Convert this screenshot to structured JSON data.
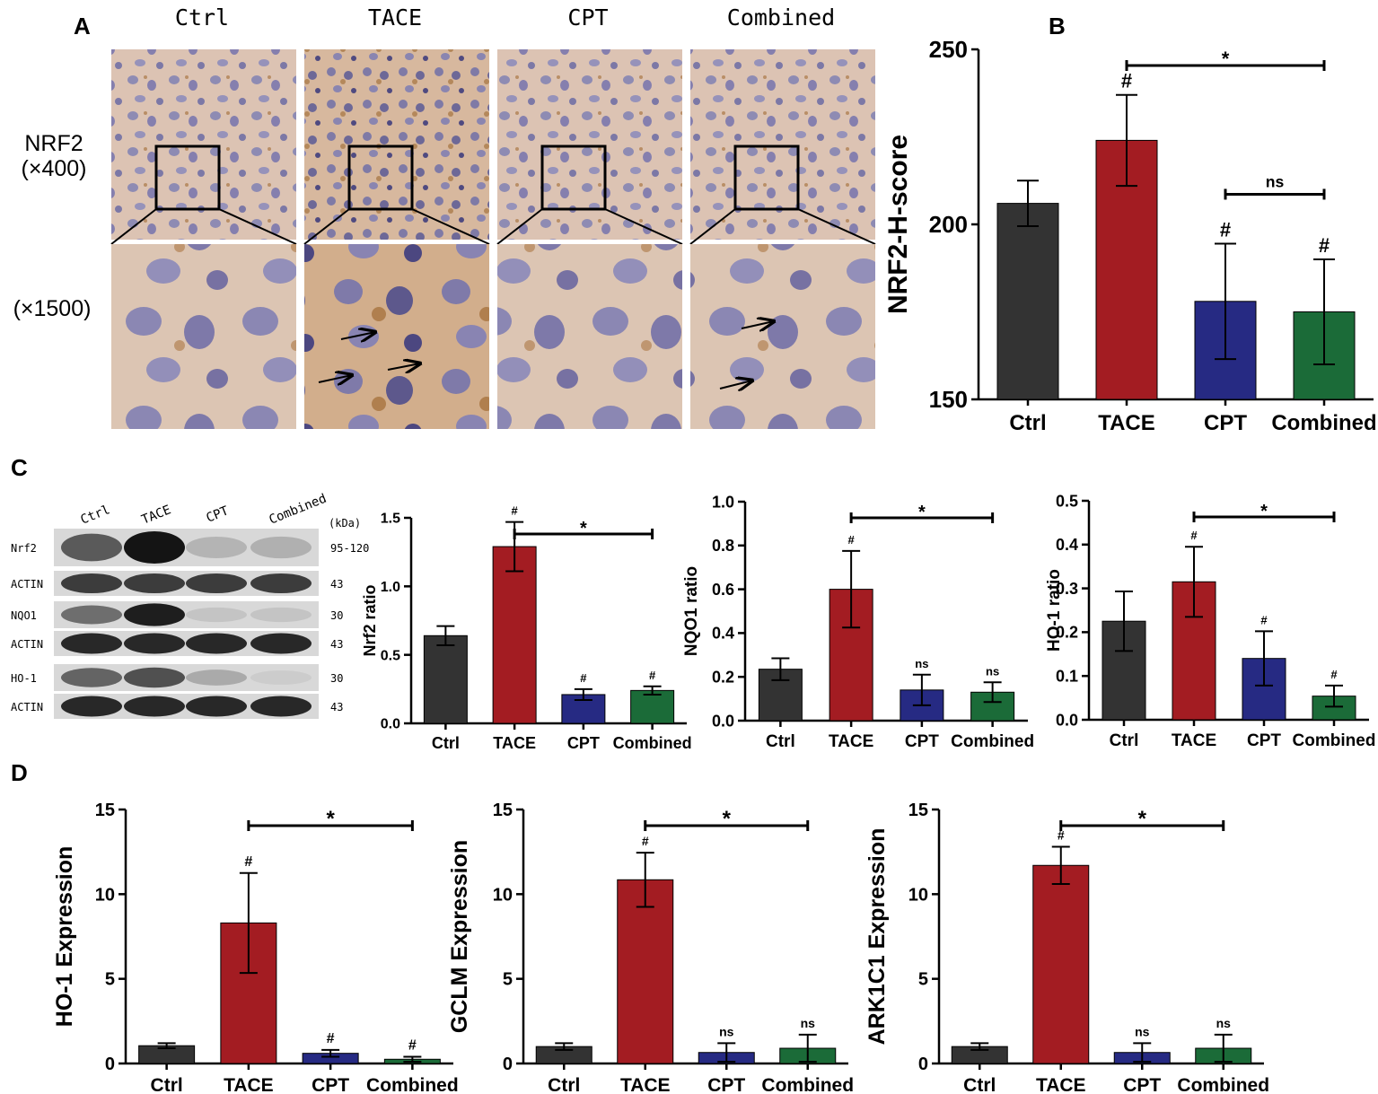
{
  "panel_letters": [
    "A",
    "B",
    "C",
    "D"
  ],
  "colors": {
    "Ctrl": "#333333",
    "TACE": "#a31c22",
    "CPT": "#262a83",
    "Combined": "#1b6b38"
  },
  "ihc": {
    "columns": [
      "Ctrl",
      "TACE",
      "CPT",
      "Combined"
    ],
    "row_labels": [
      "NRF2",
      "(×400)",
      "(×1500)"
    ]
  },
  "western_blot": {
    "lanes": [
      "Ctrl",
      "TACE",
      "CPT",
      "Combined"
    ],
    "kda_header": "(kDa)",
    "bands": [
      {
        "name": "Nrf2",
        "kda": "95-120",
        "intensity": [
          0.65,
          1.0,
          0.2,
          0.22
        ]
      },
      {
        "name": "ACTIN",
        "kda": "43",
        "intensity": [
          0.8,
          0.8,
          0.8,
          0.8
        ]
      },
      {
        "name": "NQO1",
        "kda": "30",
        "intensity": [
          0.55,
          0.95,
          0.12,
          0.12
        ]
      },
      {
        "name": "ACTIN",
        "kda": "43",
        "intensity": [
          0.9,
          0.9,
          0.9,
          0.9
        ]
      },
      {
        "name": "HO-1",
        "kda": "30",
        "intensity": [
          0.6,
          0.7,
          0.25,
          0.08
        ]
      },
      {
        "name": "ACTIN",
        "kda": "43",
        "intensity": [
          0.9,
          0.9,
          0.9,
          0.9
        ]
      }
    ]
  },
  "chart_data": [
    {
      "id": "B",
      "type": "bar",
      "categories": [
        "Ctrl",
        "TACE",
        "CPT",
        "Combined"
      ],
      "values": [
        206,
        224,
        178,
        175
      ],
      "errors": [
        6.5,
        13,
        16.5,
        15
      ],
      "ylabel": "NRF2-H-score",
      "ylim": [
        150,
        250
      ],
      "yticks": [
        150,
        200,
        250
      ],
      "marks": [
        "",
        "#",
        "#",
        "#"
      ],
      "comparisons": [
        {
          "from": 1,
          "to": 3,
          "label": "*"
        },
        {
          "from": 2,
          "to": 3,
          "label": "ns"
        }
      ]
    },
    {
      "id": "C1",
      "type": "bar",
      "categories": [
        "Ctrl",
        "TACE",
        "CPT",
        "Combined"
      ],
      "values": [
        0.64,
        1.29,
        0.21,
        0.24
      ],
      "errors": [
        0.07,
        0.18,
        0.04,
        0.03
      ],
      "ylabel": "Nrf2 ratio",
      "ylim": [
        0,
        1.5
      ],
      "yticks": [
        0.0,
        0.5,
        1.0,
        1.5
      ],
      "yticklabels": [
        "0.0",
        "0.5",
        "1.0",
        "1.5"
      ],
      "marks": [
        "",
        "#",
        "#",
        "#"
      ],
      "comparisons": [
        {
          "from": 1,
          "to": 3,
          "label": "*"
        }
      ]
    },
    {
      "id": "C2",
      "type": "bar",
      "categories": [
        "Ctrl",
        "TACE",
        "CPT",
        "Combined"
      ],
      "values": [
        0.235,
        0.6,
        0.14,
        0.13
      ],
      "errors": [
        0.05,
        0.175,
        0.07,
        0.045
      ],
      "ylabel": "NQO1 ratio",
      "ylim": [
        0,
        1.0
      ],
      "yticks": [
        0.0,
        0.2,
        0.4,
        0.6,
        0.8,
        1.0
      ],
      "yticklabels": [
        "0.0",
        "0.2",
        "0.4",
        "0.6",
        "0.8",
        "1.0"
      ],
      "marks": [
        "",
        "#",
        "ns",
        "ns"
      ],
      "comparisons": [
        {
          "from": 1,
          "to": 3,
          "label": "*"
        }
      ]
    },
    {
      "id": "C3",
      "type": "bar",
      "categories": [
        "Ctrl",
        "TACE",
        "CPT",
        "Combined"
      ],
      "values": [
        0.225,
        0.315,
        0.14,
        0.054
      ],
      "errors": [
        0.068,
        0.08,
        0.062,
        0.024
      ],
      "ylabel": "HO-1 ratio",
      "ylim": [
        0,
        0.5
      ],
      "yticks": [
        0.0,
        0.1,
        0.2,
        0.3,
        0.4,
        0.5
      ],
      "yticklabels": [
        "0.0",
        "0.1",
        "0.2",
        "0.3",
        "0.4",
        "0.5"
      ],
      "marks": [
        "",
        "#",
        "#",
        "#"
      ],
      "comparisons": [
        {
          "from": 1,
          "to": 3,
          "label": "*"
        }
      ]
    },
    {
      "id": "D1",
      "type": "bar",
      "categories": [
        "Ctrl",
        "TACE",
        "CPT",
        "Combined"
      ],
      "values": [
        1.05,
        8.3,
        0.6,
        0.25
      ],
      "errors": [
        0.15,
        2.95,
        0.2,
        0.15
      ],
      "ylabel": "HO-1 Expression",
      "ylim": [
        0,
        15
      ],
      "yticks": [
        0,
        5,
        10,
        15
      ],
      "marks": [
        "",
        "#",
        "#",
        "#"
      ],
      "comparisons": [
        {
          "from": 1,
          "to": 3,
          "label": "*"
        }
      ]
    },
    {
      "id": "D2",
      "type": "bar",
      "categories": [
        "Ctrl",
        "TACE",
        "CPT",
        "Combined"
      ],
      "values": [
        1.0,
        10.85,
        0.65,
        0.9
      ],
      "errors": [
        0.2,
        1.6,
        0.55,
        0.8
      ],
      "ylabel": "GCLM Expression",
      "ylim": [
        0,
        15
      ],
      "yticks": [
        0,
        5,
        10,
        15
      ],
      "marks": [
        "",
        "#",
        "ns",
        "ns"
      ],
      "comparisons": [
        {
          "from": 1,
          "to": 3,
          "label": "*"
        }
      ]
    },
    {
      "id": "D3",
      "type": "bar",
      "categories": [
        "Ctrl",
        "TACE",
        "CPT",
        "Combined"
      ],
      "values": [
        1.0,
        11.7,
        0.65,
        0.9
      ],
      "errors": [
        0.2,
        1.1,
        0.55,
        0.8
      ],
      "ylabel": "ARK1C1 Expression",
      "ylim": [
        0,
        15
      ],
      "yticks": [
        0,
        5,
        10,
        15
      ],
      "marks": [
        "",
        "#",
        "ns",
        "ns"
      ],
      "comparisons": [
        {
          "from": 1,
          "to": 3,
          "label": "*"
        }
      ]
    }
  ]
}
